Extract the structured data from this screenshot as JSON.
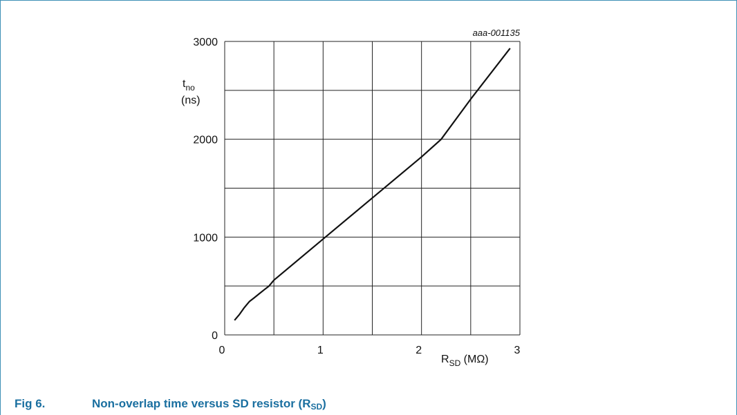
{
  "figure": {
    "caption_number": "Fig 6.",
    "caption_title": "Non-overlap time versus SD resistor (R",
    "caption_subscript": "SD",
    "caption_close": ")",
    "tag": "aaa-001135",
    "frame_color": "#3e8fb6",
    "caption_color": "#1a6fa0"
  },
  "chart_data": {
    "type": "line",
    "title": "",
    "ylabel_main": "t",
    "ylabel_sub": "no",
    "ylabel_unit": "(ns)",
    "xlabel_main": "R",
    "xlabel_sub": "SD",
    "xlabel_unit": " (MΩ)",
    "xlim": [
      0,
      3
    ],
    "ylim": [
      0,
      3000
    ],
    "x_ticks": [
      0,
      1,
      2,
      3
    ],
    "y_ticks": [
      0,
      1000,
      2000,
      3000
    ],
    "x_grid": [
      0,
      0.5,
      1,
      1.5,
      2,
      2.5,
      3
    ],
    "y_grid": [
      0,
      500,
      1000,
      1500,
      2000,
      2500,
      3000
    ],
    "grid": true,
    "line_color": "#111111",
    "series": [
      {
        "x": [
          0.1,
          0.15,
          0.2,
          0.25,
          0.3,
          0.35,
          0.4,
          0.45,
          0.5,
          1.0,
          1.5,
          2.0,
          2.2,
          2.5,
          2.9
        ],
        "values": [
          150,
          210,
          280,
          340,
          380,
          420,
          460,
          500,
          560,
          980,
          1400,
          1820,
          2000,
          2410,
          2930
        ]
      }
    ]
  }
}
